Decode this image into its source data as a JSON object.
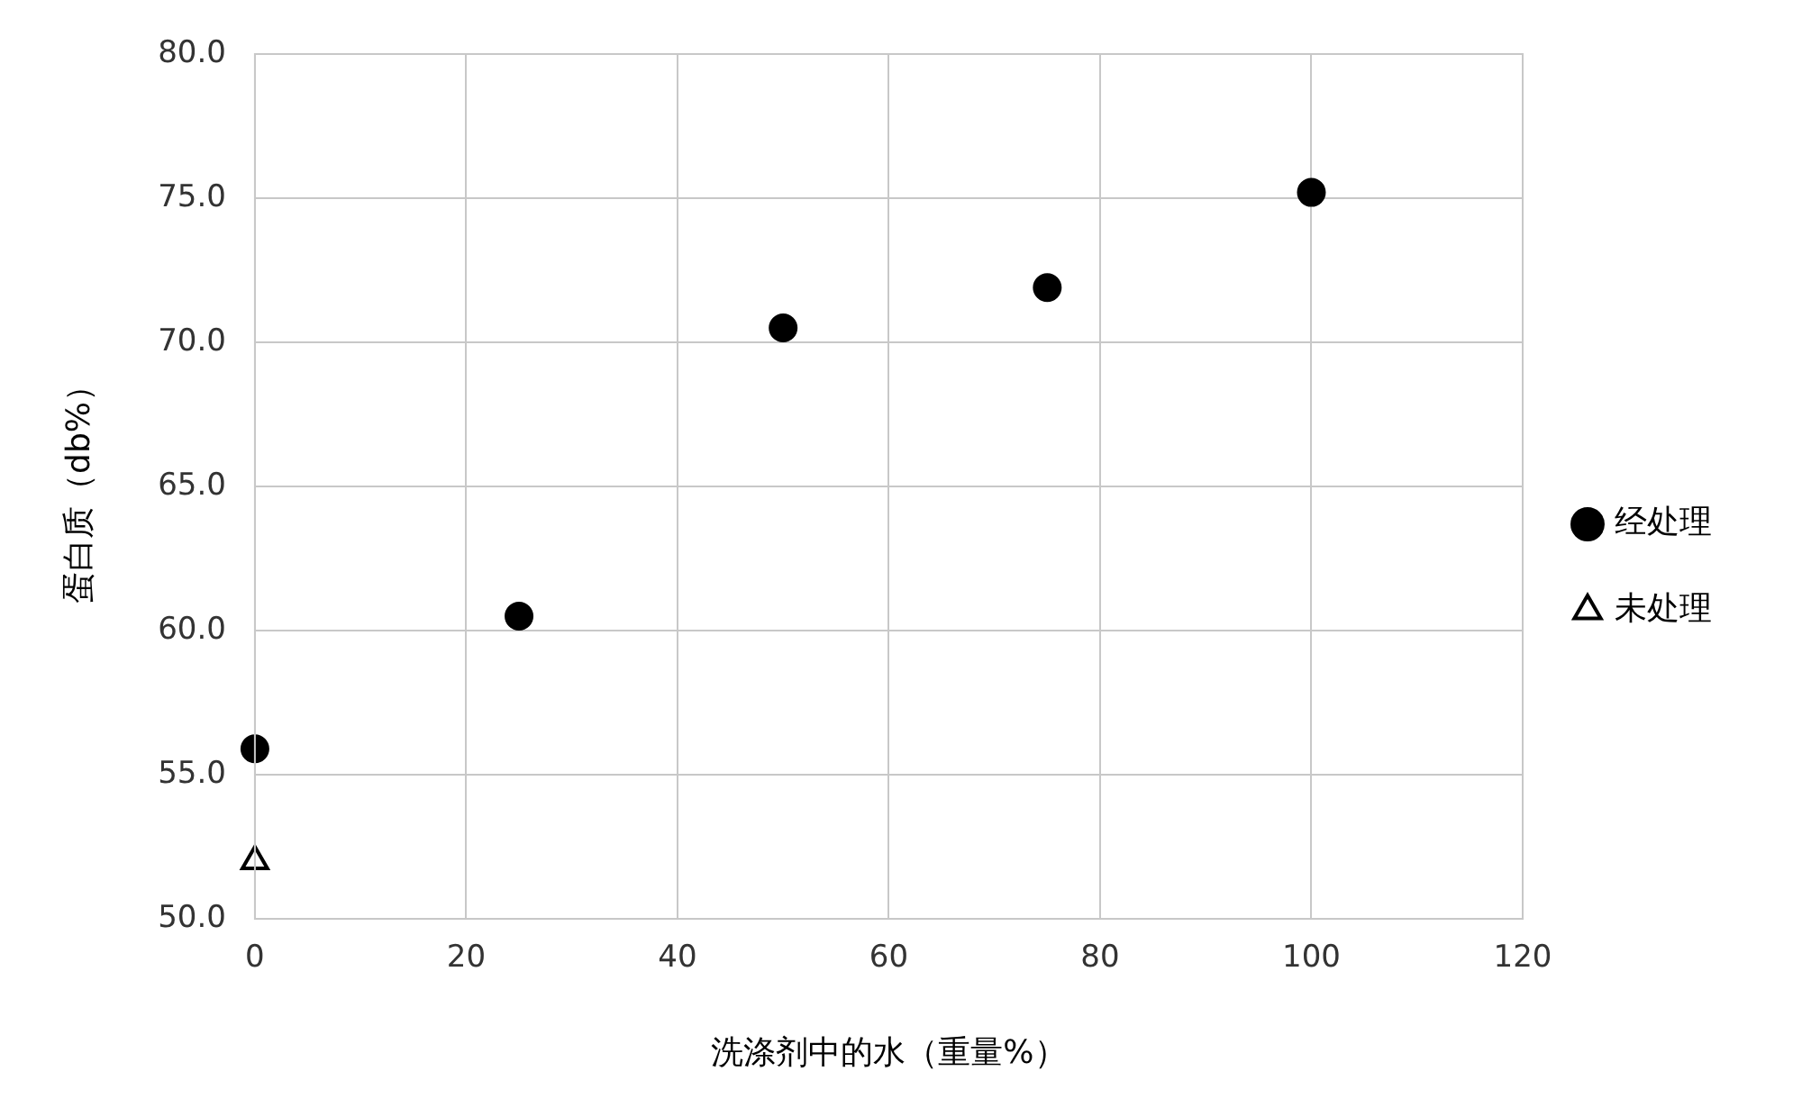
{
  "chart_data": {
    "type": "scatter",
    "xlabel": "洗涤剂中的水（重量%）",
    "ylabel": "蛋白质（db%）",
    "xlim": [
      0,
      120
    ],
    "xticks": [
      0,
      20,
      40,
      60,
      80,
      100,
      120
    ],
    "ylim": [
      50,
      80
    ],
    "yticks": [
      {
        "value": 50,
        "label": "50.0"
      },
      {
        "value": 55,
        "label": "55.0"
      },
      {
        "value": 60,
        "label": "60.0"
      },
      {
        "value": 65,
        "label": "65.0"
      },
      {
        "value": 70,
        "label": "70.0"
      },
      {
        "value": 75,
        "label": "75.0"
      },
      {
        "value": 80,
        "label": "80.0"
      }
    ],
    "grid": true,
    "legend": "right",
    "series": [
      {
        "name": "经处理",
        "color": "#000000",
        "marker": "circle",
        "x": [
          0,
          25,
          50,
          75,
          100
        ],
        "values": [
          55.9,
          60.5,
          70.5,
          71.9,
          75.2
        ]
      },
      {
        "name": "未处理",
        "color": "#000000",
        "marker": "triangle",
        "x": [
          0
        ],
        "values": [
          52.0
        ]
      }
    ]
  }
}
